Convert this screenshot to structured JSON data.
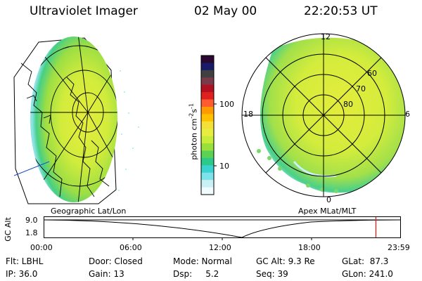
{
  "header": {
    "instrument": "Ultraviolet Imager",
    "date": "02 May 00",
    "time": "22:20:53 UT"
  },
  "colorbar": {
    "unit_label": "photon cm",
    "unit_sup_a": "-2",
    "unit_mid": "s",
    "unit_sup_b": "-1",
    "ticks": [
      "100",
      "10"
    ],
    "colors": [
      "#2a0830",
      "#1a1a6a",
      "#404040",
      "#7a3a4a",
      "#b01020",
      "#e02020",
      "#ff5a30",
      "#ff9a00",
      "#ffc000",
      "#f5e03a",
      "#e8ee40",
      "#c8ec3a",
      "#9ae03a",
      "#5ad254",
      "#2cc98a",
      "#3ad3cf",
      "#7ce3ea",
      "#c8f0f5",
      "#f0fbfd"
    ]
  },
  "left_map": {
    "label": "Geographic Lat/Lon"
  },
  "right_map": {
    "label": "Apex MLat/MLT",
    "mlt_labels": [
      "12",
      "18",
      "6",
      "0"
    ],
    "lat_labels": [
      "60",
      "70",
      "80"
    ]
  },
  "altitude_plot": {
    "axis_label": "GC Alt",
    "y_ticks": [
      "9.0",
      "1.8"
    ],
    "x_ticks": [
      "00:00",
      "06:00",
      "12:00",
      "18:00",
      "23:59"
    ],
    "current_time_fraction": 0.93
  },
  "footer": {
    "row1": [
      "Flt: LBHL",
      "Door: Closed",
      "Mode: Normal",
      "GC Alt: 9.3 Re",
      "GLat:  87.3"
    ],
    "row2": [
      "IP: 36.0",
      "Gain: 13",
      "Dsp:     5.2",
      "Seq: 39",
      "GLon: 241.0"
    ]
  }
}
